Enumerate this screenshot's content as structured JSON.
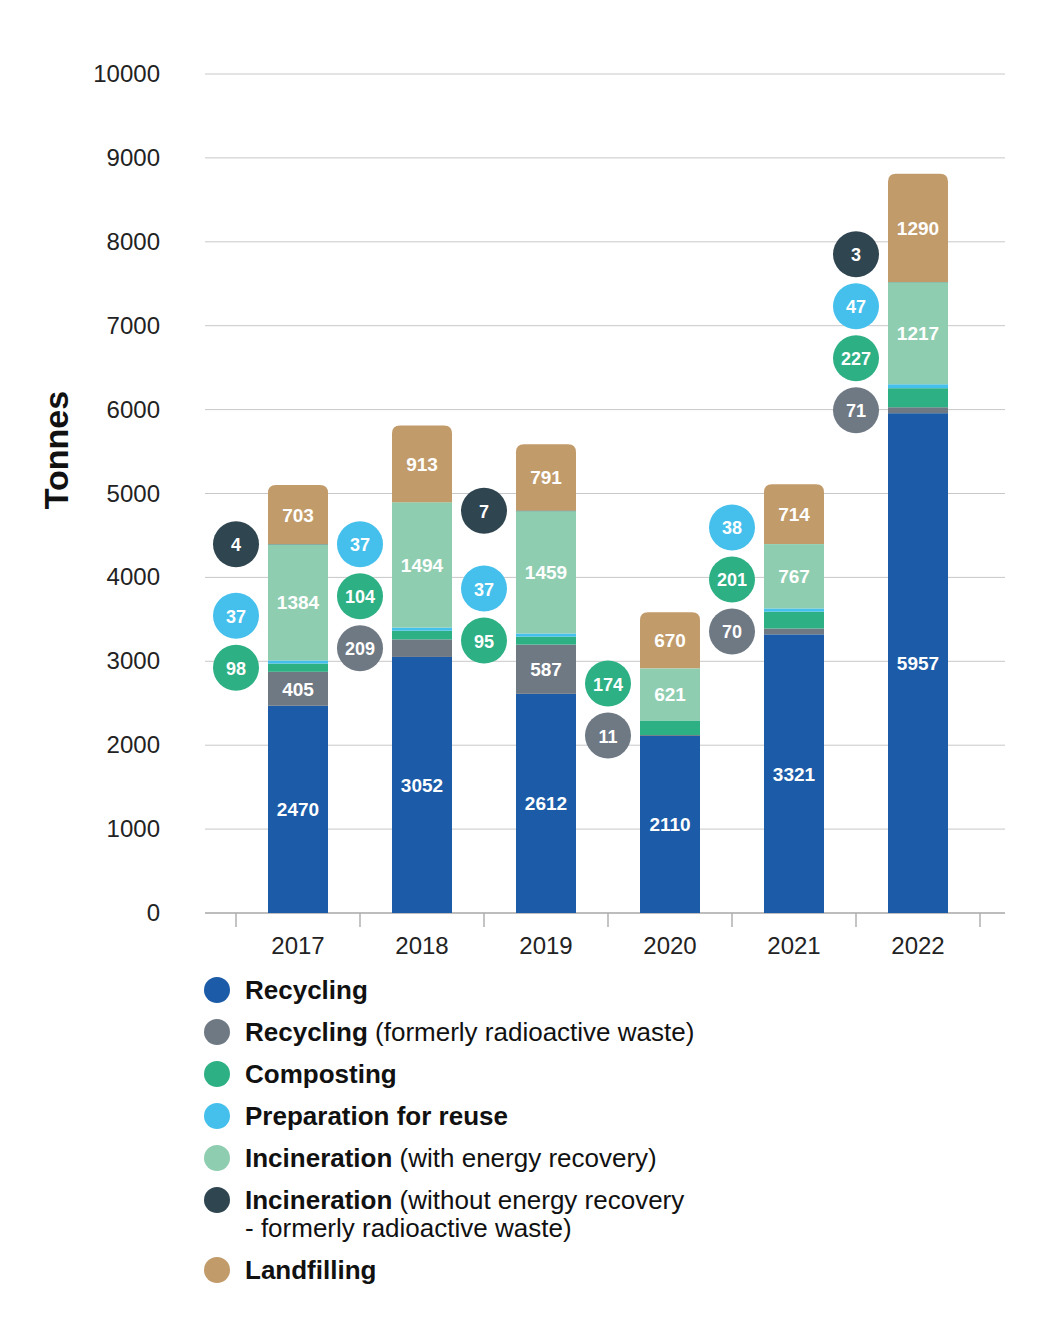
{
  "chart_data": {
    "type": "bar",
    "stacked": true,
    "data_labels": true,
    "grid": true,
    "legend": "bottom",
    "y_label": "Tonnes",
    "categories": [
      "2017",
      "2018",
      "2019",
      "2020",
      "2021",
      "2022"
    ],
    "ylim": [
      0,
      10000
    ],
    "yticks": [
      0,
      1000,
      2000,
      3000,
      4000,
      5000,
      6000,
      7000,
      8000,
      9000,
      10000
    ],
    "series": [
      {
        "name": "Recycling",
        "color": "#1b5ba8",
        "values": [
          2470,
          3052,
          2612,
          2110,
          3321,
          5957
        ]
      },
      {
        "name": "Recycling (formerly radioactive waste)",
        "color": "#6f7984",
        "values": [
          405,
          209,
          587,
          11,
          70,
          71
        ]
      },
      {
        "name": "Composting",
        "color": "#2eb085",
        "values": [
          98,
          104,
          95,
          174,
          201,
          227
        ]
      },
      {
        "name": "Preparation for reuse",
        "color": "#45c0ec",
        "values": [
          37,
          37,
          37,
          null,
          38,
          47
        ]
      },
      {
        "name": "Incineration (with energy recovery)",
        "color": "#8ecdb0",
        "values": [
          1384,
          1494,
          1459,
          621,
          767,
          1217
        ]
      },
      {
        "name": "Incineration (without energy recovery - formerly radioactive waste)",
        "color": "#2f4550",
        "values": [
          4,
          null,
          7,
          null,
          null,
          3
        ]
      },
      {
        "name": "Landfilling",
        "color": "#c29b6a",
        "values": [
          703,
          913,
          791,
          670,
          714,
          1290
        ]
      }
    ]
  }
}
